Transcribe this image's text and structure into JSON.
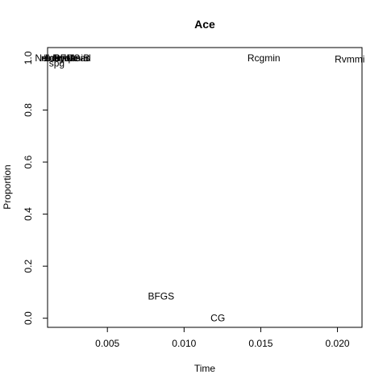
{
  "chart_data": {
    "type": "scatter",
    "title": "Ace",
    "xlabel": "Time",
    "ylabel": "Proportion",
    "xlim": [
      0.0011,
      0.0216
    ],
    "ylim": [
      -0.035,
      1.04
    ],
    "x_ticks": [
      0.005,
      0.01,
      0.015,
      0.02
    ],
    "x_tick_labels": [
      "0.005",
      "0.010",
      "0.015",
      "0.020"
    ],
    "y_ticks": [
      0.0,
      0.2,
      0.4,
      0.6,
      0.8,
      1.0
    ],
    "y_tick_labels": [
      "0.0",
      "0.2",
      "0.4",
      "0.6",
      "0.8",
      "1.0"
    ],
    "grid": false,
    "marker": "text-label",
    "points": [
      {
        "label": "BFGS",
        "x": 0.0085,
        "y": 0.085
      },
      {
        "label": "CG",
        "x": 0.0122,
        "y": 0.0
      },
      {
        "label": "Rcgmin",
        "x": 0.0152,
        "y": 1.0
      },
      {
        "label": "Rvmmi",
        "x": 0.0208,
        "y": 0.995
      },
      {
        "label": "spg",
        "x": 0.0017,
        "y": 0.98
      },
      {
        "label": "nlminb",
        "x": 0.0016,
        "y": 1.0
      },
      {
        "label": "ucminf",
        "x": 0.0018,
        "y": 1.0
      },
      {
        "label": "Nelder-Mead",
        "x": 0.0021,
        "y": 1.0
      },
      {
        "label": "L-BFGS-B",
        "x": 0.0024,
        "y": 1.0
      },
      {
        "label": "Rvmmin",
        "x": 0.0026,
        "y": 1.0
      },
      {
        "label": "bobyqa",
        "x": 0.0019,
        "y": 1.0
      }
    ]
  }
}
